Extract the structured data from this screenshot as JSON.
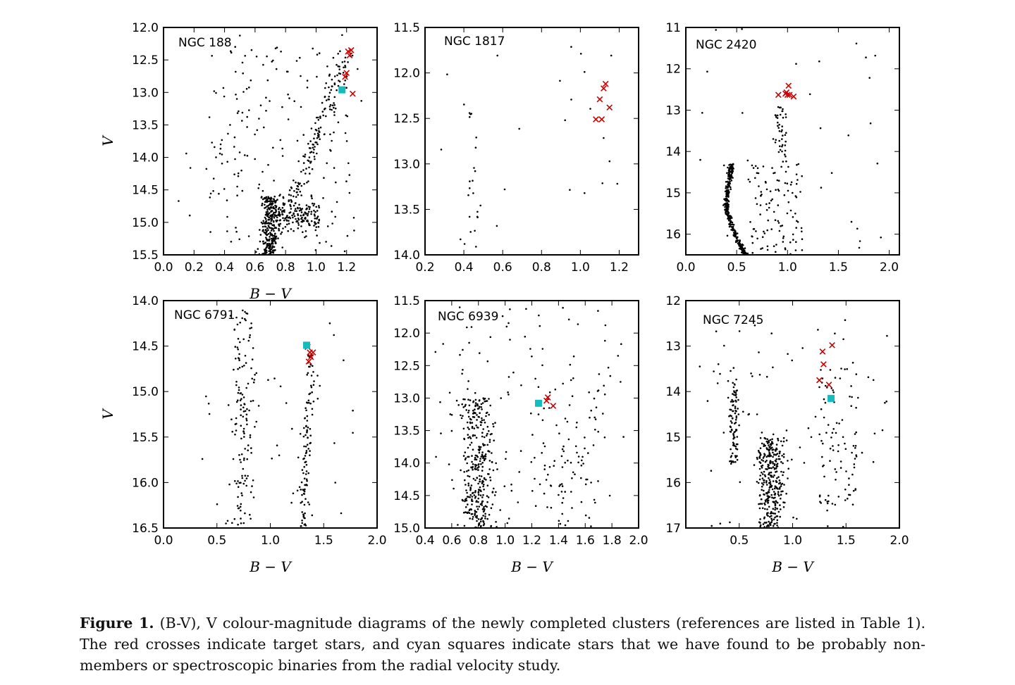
{
  "caption": {
    "label": "Figure 1.",
    "text": "(B-V), V colour-magnitude diagrams of the newly completed clusters (references are listed in Table 1). The red crosses indicate target stars, and cyan squares indicate stars that we have found to be probably non-members or spectroscopic binaries from the radial velocity study."
  },
  "colors": {
    "star": "#000000",
    "target": "#cc0000",
    "nonmember": "#13bdbd"
  },
  "chart_data": [
    {
      "type": "scatter",
      "title": "NGC 188",
      "xlabel": "B − V",
      "ylabel": "V",
      "xlim": [
        0.0,
        1.4
      ],
      "ylim": [
        15.5,
        12.0
      ],
      "y_inverted": true,
      "xticks": [
        "0.0",
        "0.2",
        "0.4",
        "0.6",
        "0.8",
        "1.0",
        "1.2"
      ],
      "yticks": [
        "12.0",
        "12.5",
        "13.0",
        "13.5",
        "14.0",
        "14.5",
        "15.0",
        "15.5"
      ],
      "field_stars": "approximately 700 black dots: dense main-sequence turnoff near B−V 0.65–0.75 at V 14.8–15.5, a subgiant branch across B−V 0.7–1.0 near V 15.0, a giant branch rising to B−V 1.25 at V 12.3, plus scattered field stars",
      "targets": [
        [
          1.21,
          12.37
        ],
        [
          1.23,
          12.35
        ],
        [
          1.22,
          12.43
        ],
        [
          1.19,
          12.76
        ],
        [
          1.2,
          12.7
        ],
        [
          1.24,
          13.02
        ]
      ],
      "nonmembers": [
        [
          1.17,
          12.96
        ]
      ]
    },
    {
      "type": "scatter",
      "title": "NGC 1817",
      "xlabel": "",
      "ylabel": "",
      "xlim": [
        0.2,
        1.3
      ],
      "ylim": [
        14.0,
        11.5
      ],
      "y_inverted": true,
      "xticks": [
        "0.2",
        "0.4",
        "0.6",
        "0.8",
        "1.0",
        "1.2"
      ],
      "yticks": [
        "11.5",
        "12.0",
        "12.5",
        "13.0",
        "13.5",
        "14.0"
      ],
      "field_stars": "approximately 45 black dots: a sparse column near B−V 0.4–0.5 between V 12.3 and 14.0, plus scattered field stars",
      "targets": [
        [
          1.13,
          12.12
        ],
        [
          1.12,
          12.17
        ],
        [
          1.1,
          12.29
        ],
        [
          1.15,
          12.38
        ],
        [
          1.08,
          12.51
        ],
        [
          1.11,
          12.51
        ]
      ],
      "nonmembers": []
    },
    {
      "type": "scatter",
      "title": "NGC 2420",
      "xlabel": "",
      "ylabel": "",
      "xlim": [
        0.0,
        2.1
      ],
      "ylim": [
        16.5,
        11.0
      ],
      "y_inverted": true,
      "xticks": [
        "0.0",
        "0.5",
        "1.0",
        "1.5",
        "2.0"
      ],
      "yticks": [
        "11",
        "12",
        "13",
        "14",
        "15",
        "16"
      ],
      "field_stars": "approximately 500 black dots: a dense curved main sequence from B−V 0.5 at V 14.3 bending to B−V 0.4 at V 15 and back to B−V 0.6 at V 16.5, a red clump near B−V 1.0 at V 12.6, and scattered field stars",
      "targets": [
        [
          0.91,
          12.63
        ],
        [
          0.98,
          12.6
        ],
        [
          1.0,
          12.63
        ],
        [
          0.99,
          12.57
        ],
        [
          1.02,
          12.63
        ],
        [
          1.01,
          12.41
        ],
        [
          1.06,
          12.67
        ]
      ],
      "nonmembers": []
    },
    {
      "type": "scatter",
      "title": "NGC 6791",
      "xlabel": "B − V",
      "ylabel": "V",
      "xlim": [
        0.0,
        2.0
      ],
      "ylim": [
        16.5,
        14.0
      ],
      "y_inverted": true,
      "xticks": [
        "0.0",
        "0.5",
        "1.0",
        "1.5",
        "2.0"
      ],
      "yticks": [
        "14.0",
        "14.5",
        "15.0",
        "15.5",
        "16.0",
        "16.5"
      ],
      "field_stars": "approximately 300 black dots: a blue column near B−V 0.6–0.9, a red giant branch near B−V 1.2–1.4 rising from V 16.5 to V 14.5, and scattered field stars",
      "targets": [
        [
          1.35,
          14.51
        ],
        [
          1.37,
          14.57
        ],
        [
          1.4,
          14.57
        ],
        [
          1.38,
          14.62
        ],
        [
          1.36,
          14.67
        ]
      ],
      "nonmembers": [
        [
          1.34,
          14.49
        ]
      ]
    },
    {
      "type": "scatter",
      "title": "NGC 6939",
      "xlabel": "B − V",
      "ylabel": "",
      "xlim": [
        0.4,
        2.0
      ],
      "ylim": [
        15.0,
        11.5
      ],
      "y_inverted": true,
      "xticks": [
        "0.4",
        "0.6",
        "0.8",
        "1.0",
        "1.2",
        "1.4",
        "1.6",
        "1.8",
        "2.0"
      ],
      "yticks": [
        "11.5",
        "12.0",
        "12.5",
        "13.0",
        "13.5",
        "14.0",
        "14.5",
        "15.0"
      ],
      "field_stars": "approximately 550 black dots: a dense main sequence near B−V 0.65–0.95 between V 13 and 15, a scattered giant region near B−V 1.2–1.7, and field stars",
      "targets": [
        [
          1.32,
          12.99
        ],
        [
          1.31,
          13.04
        ],
        [
          1.36,
          13.12
        ]
      ],
      "nonmembers": [
        [
          1.25,
          13.08
        ]
      ]
    },
    {
      "type": "scatter",
      "title": "NGC 7245",
      "xlabel": "B − V",
      "ylabel": "",
      "xlim": [
        0.0,
        2.0
      ],
      "ylim": [
        17.0,
        12.0
      ],
      "y_inverted": true,
      "xticks": [
        "0.5",
        "1.0",
        "1.5",
        "2.0"
      ],
      "yticks": [
        "12",
        "13",
        "14",
        "15",
        "16",
        "17"
      ],
      "field_stars": "approximately 600 black dots: a bright sequence near B−V 0.4–0.5 from V 14 to 15.5, a dense main sequence near B−V 0.6–1.0 at V 15–17, a red region near B−V 1.2–1.5, and field stars",
      "targets": [
        [
          1.37,
          12.98
        ],
        [
          1.28,
          13.12
        ],
        [
          1.29,
          13.4
        ],
        [
          1.25,
          13.75
        ],
        [
          1.34,
          13.85
        ]
      ],
      "nonmembers": [
        [
          1.36,
          14.15
        ]
      ]
    }
  ]
}
